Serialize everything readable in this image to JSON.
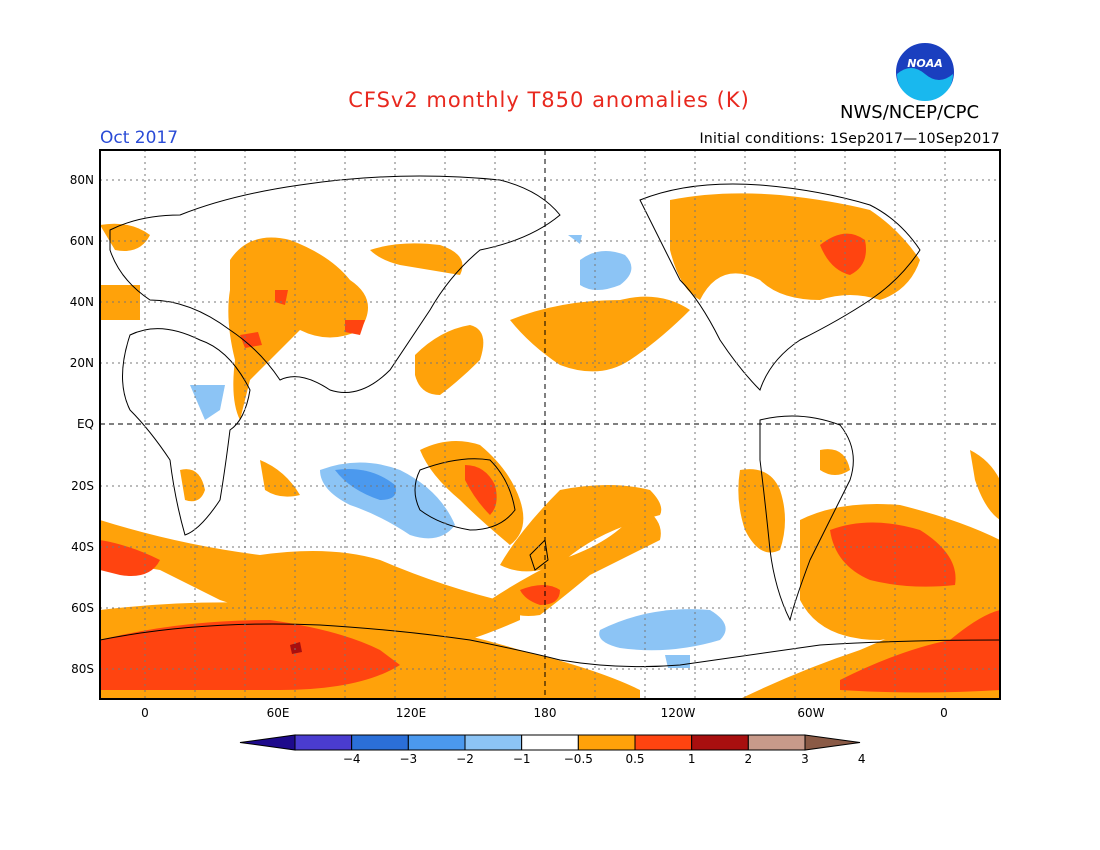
{
  "title": "CFSv2 monthly T850 anomalies (K)",
  "agency": "NWS/NCEP/CPC",
  "logo_text": "NOAA",
  "valid_month": "Oct 2017",
  "initial_conditions": "Initial conditions: 1Sep2017—10Sep2017",
  "lat_labels": [
    "80N",
    "60N",
    "40N",
    "20N",
    "EQ",
    "20S",
    "40S",
    "60S",
    "80S"
  ],
  "lon_labels": [
    "0",
    "60E",
    "120E",
    "180",
    "120W",
    "60W",
    "0"
  ],
  "colorbar": {
    "tick_labels": [
      "−4",
      "−3",
      "−2",
      "−1",
      "−0.5",
      "0.5",
      "1",
      "2",
      "3",
      "4"
    ],
    "colors": [
      "#1e0a8c",
      "#4a3ccf",
      "#2b6fd8",
      "#4b99ee",
      "#8cc4f5",
      "#ffffff",
      "#ffa20a",
      "#ff4410",
      "#a80f0f",
      "#c89a8a",
      "#8a5a46"
    ]
  }
}
